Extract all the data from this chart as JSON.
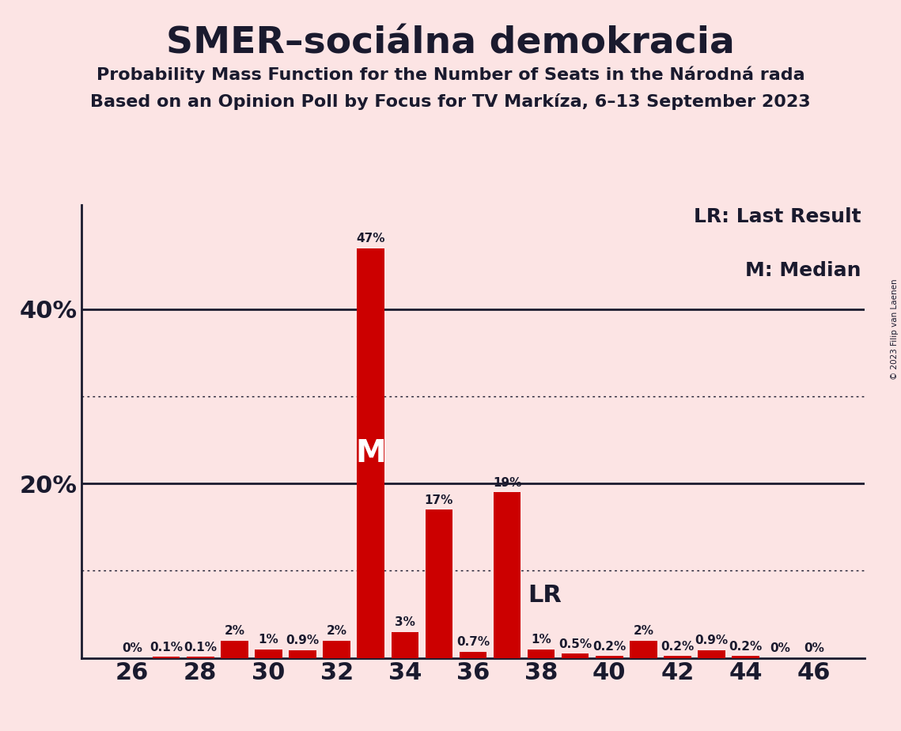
{
  "title": "SMER–sociálna demokracia",
  "subtitle1": "Probability Mass Function for the Number of Seats in the Národná rada",
  "subtitle2": "Based on an Opinion Poll by Focus for TV Markíza, 6–13 September 2023",
  "copyright": "© 2023 Filip van Laenen",
  "seats": [
    26,
    27,
    28,
    29,
    30,
    31,
    32,
    33,
    34,
    35,
    36,
    37,
    38,
    39,
    40,
    41,
    42,
    43,
    44,
    45,
    46
  ],
  "probabilities": [
    0.0,
    0.1,
    0.1,
    2.0,
    1.0,
    0.9,
    2.0,
    47.0,
    3.0,
    17.0,
    0.7,
    19.0,
    1.0,
    0.5,
    0.2,
    2.0,
    0.2,
    0.9,
    0.2,
    0.0,
    0.0
  ],
  "bar_color": "#cc0000",
  "background_color": "#fce4e4",
  "median_seat": 33,
  "lr_seat": 37,
  "major_yticks": [
    20,
    40
  ],
  "major_ytick_labels": [
    "20%",
    "40%"
  ],
  "dotted_yticks": [
    10,
    30
  ],
  "xlim": [
    24.5,
    47.5
  ],
  "ylim": [
    0,
    52
  ],
  "xtick_positions": [
    26,
    28,
    30,
    32,
    34,
    36,
    38,
    40,
    42,
    44,
    46
  ],
  "font_color": "#1a1a2e",
  "title_fontsize": 34,
  "subtitle_fontsize": 16,
  "tick_fontsize": 22,
  "label_fontsize": 11,
  "legend_fontsize": 18,
  "median_label_fontsize": 28,
  "lr_label_fontsize": 22
}
